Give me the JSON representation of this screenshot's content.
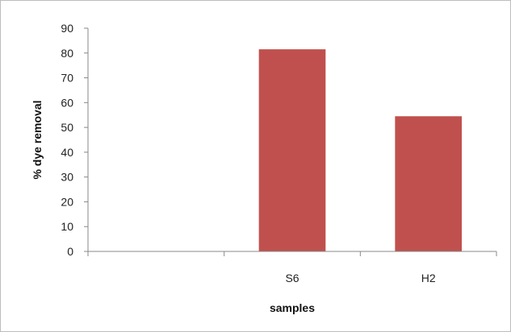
{
  "chart_data": {
    "type": "bar",
    "categories": [
      "",
      "S6",
      "H2"
    ],
    "values": [
      null,
      81.5,
      54.5
    ],
    "xlabel": "samples",
    "ylabel": "% dye removal",
    "ylim": [
      0,
      90
    ],
    "yticks": [
      0,
      10,
      20,
      30,
      40,
      50,
      60,
      70,
      80,
      90
    ],
    "grid": false,
    "legend": "none",
    "bar_color": "#c0504d",
    "axis_color": "#888888"
  }
}
